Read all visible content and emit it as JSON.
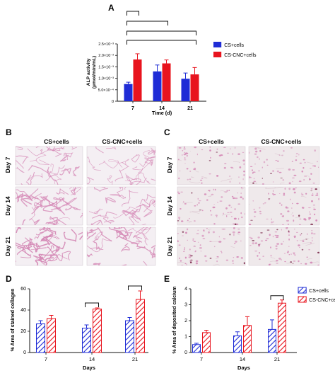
{
  "colors": {
    "cs": "#1f2cd6",
    "cs_cnc": "#e8141e",
    "axis": "#111111",
    "tissue_bg": "#efeaed",
    "stain": "#d487b5",
    "stain_dark": "#7a2a4a"
  },
  "panels": {
    "A": "A",
    "B": "B",
    "C": "C",
    "D": "D",
    "E": "E"
  },
  "micro": {
    "col_headers": [
      "CS+cells",
      "CS-CNC+cells"
    ],
    "row_labels": [
      "Day 7",
      "Day 14",
      "Day 21"
    ]
  },
  "chart_data": [
    {
      "id": "A",
      "type": "bar",
      "categories": [
        "7",
        "14",
        "21"
      ],
      "series": [
        {
          "name": "CS+cells",
          "values": [
            0.00075,
            0.0013,
            0.00098
          ],
          "errors": [
            8e-05,
            0.00028,
            0.00025
          ]
        },
        {
          "name": "CS-CNC+cells",
          "values": [
            0.00182,
            0.00165,
            0.00117
          ],
          "errors": [
            0.00025,
            0.00015,
            0.0003
          ]
        }
      ],
      "xlabel": "Time (d)",
      "ylabel": "ALP activity\n(µmol/min/mL)",
      "ylim": [
        0,
        0.0025
      ],
      "yticks": [
        "0",
        "5.0×10⁻⁴",
        "1.0×10⁻³",
        "1.5×10⁻³",
        "2.0×10⁻³",
        "2.5×10⁻³"
      ],
      "ytick_values": [
        0,
        0.0005,
        0.001,
        0.0015,
        0.002,
        0.0025
      ],
      "fill": "solid",
      "legend": "right"
    },
    {
      "id": "D",
      "type": "bar",
      "categories": [
        "7",
        "14",
        "21"
      ],
      "series": [
        {
          "name": "CS+cells",
          "values": [
            27,
            23,
            30
          ],
          "errors": [
            3,
            3,
            3
          ]
        },
        {
          "name": "CS-CNC+cells",
          "values": [
            32,
            41,
            50
          ],
          "errors": [
            3,
            1,
            8
          ]
        }
      ],
      "xlabel": "Days",
      "ylabel": "% Area of stained collagen",
      "ylim": [
        0,
        60
      ],
      "yticks": [
        "0",
        "20",
        "40",
        "60"
      ],
      "ytick_values": [
        0,
        20,
        40,
        60
      ],
      "fill": "hatched",
      "legend": "none"
    },
    {
      "id": "E",
      "type": "bar",
      "categories": [
        "7",
        "14",
        "21"
      ],
      "series": [
        {
          "name": "CS+cells",
          "values": [
            0.5,
            1.05,
            1.45
          ],
          "errors": [
            0.08,
            0.25,
            0.6
          ]
        },
        {
          "name": "CS-CNC+cells",
          "values": [
            1.25,
            1.7,
            3.1
          ],
          "errors": [
            0.15,
            0.55,
            0.2
          ]
        }
      ],
      "xlabel": "Days",
      "ylabel": "% Area of deposited calcium",
      "ylim": [
        0,
        4
      ],
      "yticks": [
        "0",
        "1",
        "2",
        "3",
        "4"
      ],
      "ytick_values": [
        0,
        1,
        2,
        3,
        4
      ],
      "fill": "hatched",
      "legend": "right"
    }
  ]
}
